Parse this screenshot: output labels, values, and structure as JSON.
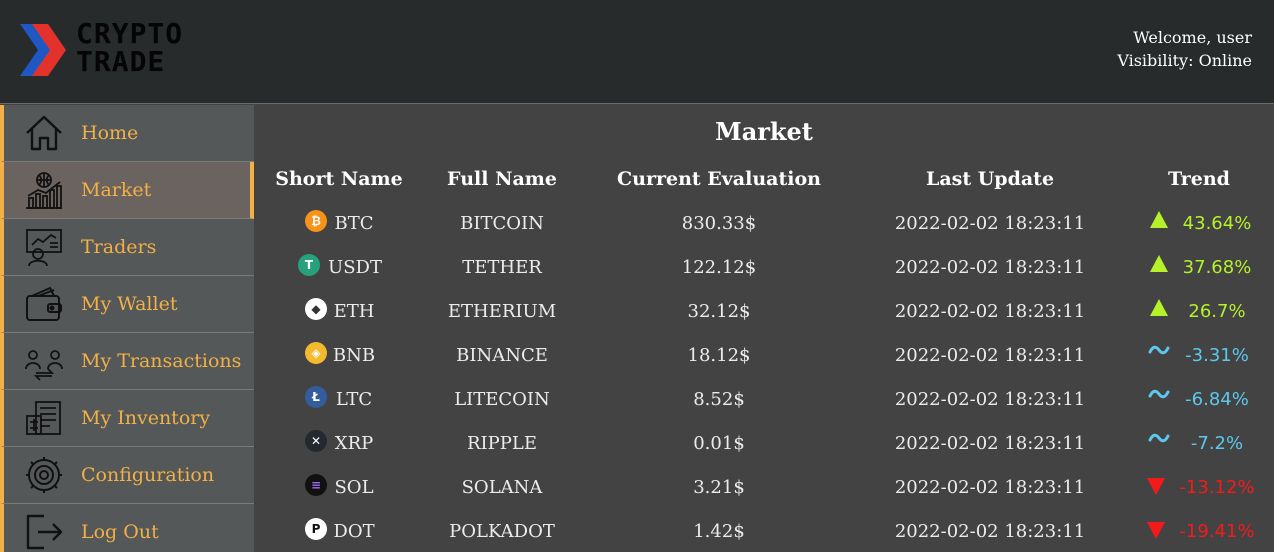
{
  "app": {
    "logo_line1": "CRYPTO",
    "logo_line2": "TRADE",
    "welcome": "Welcome, user",
    "visibility": "Visibility: Online"
  },
  "colors": {
    "accent": "#f2b046",
    "header_bg": "#272b2b",
    "sidebar_bg": "#555859",
    "main_bg": "#434343",
    "trend_up": "#b6f22a",
    "trend_flat": "#5cc8ec",
    "trend_down": "#f41a1a"
  },
  "sidebar": {
    "items": [
      {
        "label": "Home",
        "icon": "home-icon",
        "active": false
      },
      {
        "label": "Market",
        "icon": "market-chart-icon",
        "active": true
      },
      {
        "label": "Traders",
        "icon": "traders-icon",
        "active": false
      },
      {
        "label": "My Wallet",
        "icon": "wallet-icon",
        "active": false
      },
      {
        "label": "My Transactions",
        "icon": "transactions-icon",
        "active": false
      },
      {
        "label": "My Inventory",
        "icon": "inventory-icon",
        "active": false
      },
      {
        "label": "Configuration",
        "icon": "gear-icon",
        "active": false
      },
      {
        "label": "Log Out",
        "icon": "logout-icon",
        "active": false
      }
    ]
  },
  "market": {
    "title": "Market",
    "columns": [
      "Short Name",
      "Full Name",
      "Current Evaluation",
      "Last Update",
      "Trend"
    ],
    "rows": [
      {
        "short": "BTC",
        "full": "BITCOIN",
        "value": "830.33$",
        "updated": "2022-02-02 18:23:11",
        "trend": "43.64%",
        "dir": "up",
        "icon": "bitcoin-icon"
      },
      {
        "short": "USDT",
        "full": "TETHER",
        "value": "122.12$",
        "updated": "2022-02-02 18:23:11",
        "trend": "37.68%",
        "dir": "up",
        "icon": "tether-icon"
      },
      {
        "short": "ETH",
        "full": "ETHERIUM",
        "value": "32.12$",
        "updated": "2022-02-02 18:23:11",
        "trend": "26.7%",
        "dir": "up",
        "icon": "ethereum-icon"
      },
      {
        "short": "BNB",
        "full": "BINANCE",
        "value": "18.12$",
        "updated": "2022-02-02 18:23:11",
        "trend": "-3.31%",
        "dir": "flat",
        "icon": "binance-icon"
      },
      {
        "short": "LTC",
        "full": "LITECOIN",
        "value": "8.52$",
        "updated": "2022-02-02 18:23:11",
        "trend": "-6.84%",
        "dir": "flat",
        "icon": "litecoin-icon"
      },
      {
        "short": "XRP",
        "full": "RIPPLE",
        "value": "0.01$",
        "updated": "2022-02-02 18:23:11",
        "trend": "-7.2%",
        "dir": "flat",
        "icon": "ripple-icon"
      },
      {
        "short": "SOL",
        "full": "SOLANA",
        "value": "3.21$",
        "updated": "2022-02-02 18:23:11",
        "trend": "-13.12%",
        "dir": "down",
        "icon": "solana-icon"
      },
      {
        "short": "DOT",
        "full": "POLKADOT",
        "value": "1.42$",
        "updated": "2022-02-02 18:23:11",
        "trend": "-19.41%",
        "dir": "down",
        "icon": "polkadot-icon"
      }
    ]
  }
}
